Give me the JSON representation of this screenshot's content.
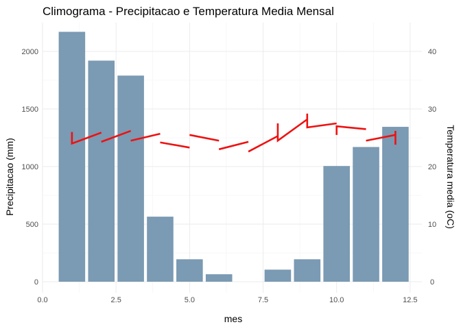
{
  "chart_data": {
    "type": "bar",
    "title": "Climograma - Precipitacao e Temperatura Media Mensal",
    "xlabel": "mes",
    "ylabel": "Precipitacao (mm)",
    "y2label": "Temperatura media (oC)",
    "x": [
      1,
      2,
      3,
      4,
      5,
      6,
      7,
      8,
      9,
      10,
      11,
      12
    ],
    "xlim": [
      0,
      12.9
    ],
    "ylim": [
      -95,
      2250
    ],
    "y2lim": [
      -1.9,
      45
    ],
    "grid": true,
    "legend": "none",
    "x_ticks": [
      0.0,
      2.5,
      5.0,
      7.5,
      10.0,
      12.5
    ],
    "x_tick_labels": [
      "0.0",
      "2.5",
      "5.0",
      "7.5",
      "10.0",
      "12.5"
    ],
    "y_ticks": [
      0,
      500,
      1000,
      1500,
      2000
    ],
    "y_tick_labels": [
      "0",
      "500",
      "1000",
      "1500",
      "2000"
    ],
    "y2_ticks": [
      0,
      10,
      20,
      30,
      40
    ],
    "y2_tick_labels": [
      "0",
      "10",
      "20",
      "30",
      "40"
    ],
    "series": [
      {
        "type": "bar",
        "axis": "left",
        "color": "#7b9ab3",
        "values": [
          2170,
          1920,
          1790,
          565,
          195,
          65,
          0,
          105,
          195,
          1005,
          1170,
          1345
        ]
      },
      {
        "type": "line",
        "axis": "right",
        "color": "#ee1111",
        "segments": [
          [
            [
              1,
              26.0
            ],
            [
              1,
              24.0
            ],
            [
              2,
              25.9
            ]
          ],
          [
            [
              2,
              24.3
            ],
            [
              3,
              26.2
            ]
          ],
          [
            [
              3,
              24.5
            ],
            [
              4,
              25.7
            ]
          ],
          [
            [
              4,
              24.2
            ],
            [
              5,
              23.3
            ]
          ],
          [
            [
              5,
              25.5
            ],
            [
              6,
              24.5
            ]
          ],
          [
            [
              6,
              23.0
            ],
            [
              7,
              24.3
            ]
          ],
          [
            [
              7,
              22.6
            ],
            [
              8,
              25.3
            ]
          ],
          [
            [
              8,
              27.5
            ],
            [
              8,
              24.5
            ],
            [
              9,
              28.2
            ]
          ],
          [
            [
              9,
              29.2
            ],
            [
              9,
              26.8
            ],
            [
              10,
              27.5
            ]
          ],
          [
            [
              10,
              25.5
            ],
            [
              10,
              27.0
            ],
            [
              11,
              26.5
            ]
          ],
          [
            [
              11,
              24.5
            ],
            [
              12,
              25.5
            ]
          ],
          [
            [
              12,
              23.8
            ],
            [
              12,
              26.2
            ]
          ]
        ]
      }
    ]
  }
}
